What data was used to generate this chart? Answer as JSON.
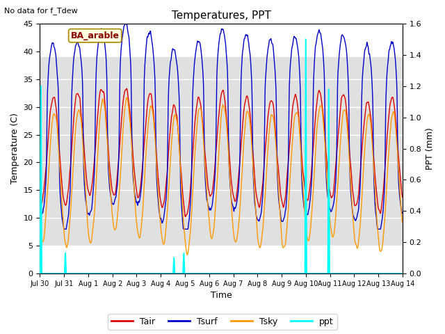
{
  "title": "Temperatures, PPT",
  "subtitle": "No data for f_Tdew",
  "location_label": "BA_arable",
  "xlabel": "Time",
  "ylabel_left": "Temperature (C)",
  "ylabel_right": "PPT (mm)",
  "ylim_left": [
    0,
    45
  ],
  "ylim_right": [
    0.0,
    1.6
  ],
  "yticks_left": [
    0,
    5,
    10,
    15,
    20,
    25,
    30,
    35,
    40,
    45
  ],
  "yticks_right": [
    0.0,
    0.2,
    0.4,
    0.6,
    0.8,
    1.0,
    1.2,
    1.4,
    1.6
  ],
  "xtick_labels": [
    "Jul 30",
    "Jul 31",
    "Aug 1",
    "Aug 2",
    "Aug 3",
    "Aug 4",
    "Aug 5",
    "Aug 6",
    "Aug 7",
    "Aug 8",
    "Aug 9",
    "Aug 10",
    "Aug 11",
    "Aug 12",
    "Aug 13",
    "Aug 14"
  ],
  "colors": {
    "Tair": "#dd0000",
    "Tsurf": "#0000cc",
    "Tsky": "#ff9900",
    "ppt": "#00ffff",
    "bg_band_low": 5,
    "bg_band_high": 39,
    "bg_band_color": "#e0e0e0"
  },
  "fig_width": 6.4,
  "fig_height": 4.8,
  "dpi": 100,
  "n_days": 15,
  "ppd": 96,
  "ppt_spikes": [
    {
      "day": 0.04,
      "val": 1.2
    },
    {
      "day": 1.05,
      "val": 0.13
    },
    {
      "day": 5.55,
      "val": 0.1
    },
    {
      "day": 5.95,
      "val": 0.13
    },
    {
      "day": 11.0,
      "val": 1.5
    },
    {
      "day": 11.95,
      "val": 1.18
    }
  ]
}
